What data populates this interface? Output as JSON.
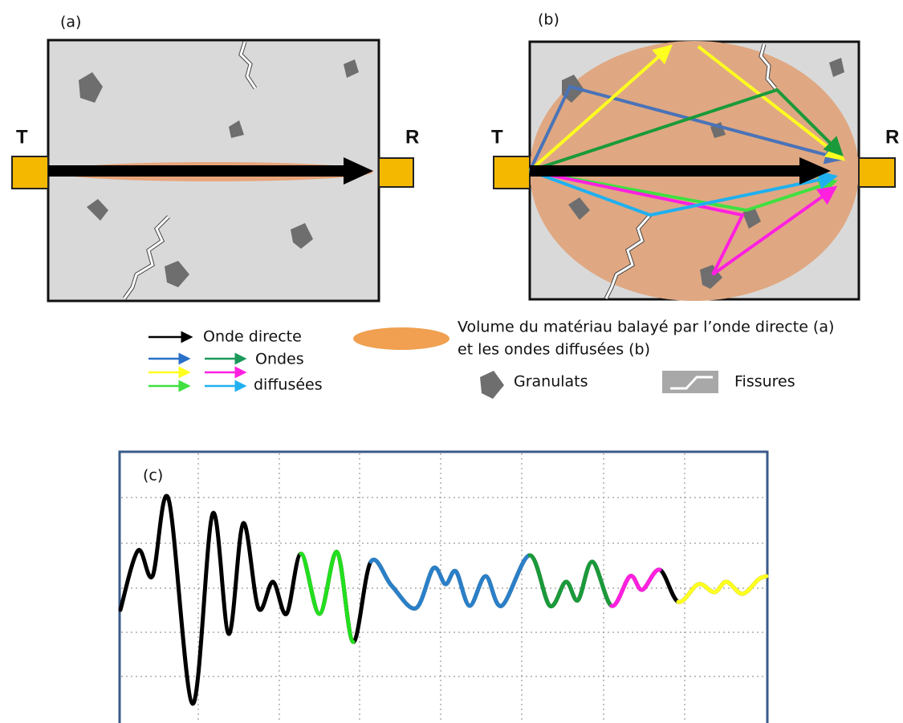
{
  "panels": [
    {
      "label": "(a)",
      "transmitter": "T",
      "receiver": "R"
    },
    {
      "label": "(b)",
      "transmitter": "T",
      "receiver": "R"
    }
  ],
  "legend": {
    "direct": "Onde directe",
    "scattered": [
      "Ondes",
      "diffusées"
    ],
    "volume": [
      "Volume du matériau balayé par l’onde directe (a)",
      "et les ondes diffusées (b)"
    ],
    "aggregates": "Granulats",
    "cracks": "Fissures"
  },
  "signal": {
    "label": "(c)"
  }
}
